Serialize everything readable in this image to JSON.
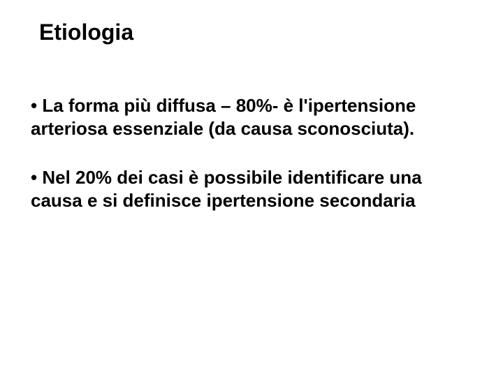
{
  "slide": {
    "title": "Etiologia",
    "bullets": [
      "• La forma più diffusa – 80%- è l'ipertensione arteriosa essenziale (da causa sconosciuta).",
      "• Nel 20% dei casi è possibile identificare una causa e si definisce ipertensione secondaria"
    ]
  },
  "style": {
    "background_color": "#ffffff",
    "text_color": "#000000",
    "font_family": "Arial",
    "title_fontsize": 32,
    "body_fontsize": 26,
    "title_weight": "bold",
    "body_weight": "bold"
  }
}
